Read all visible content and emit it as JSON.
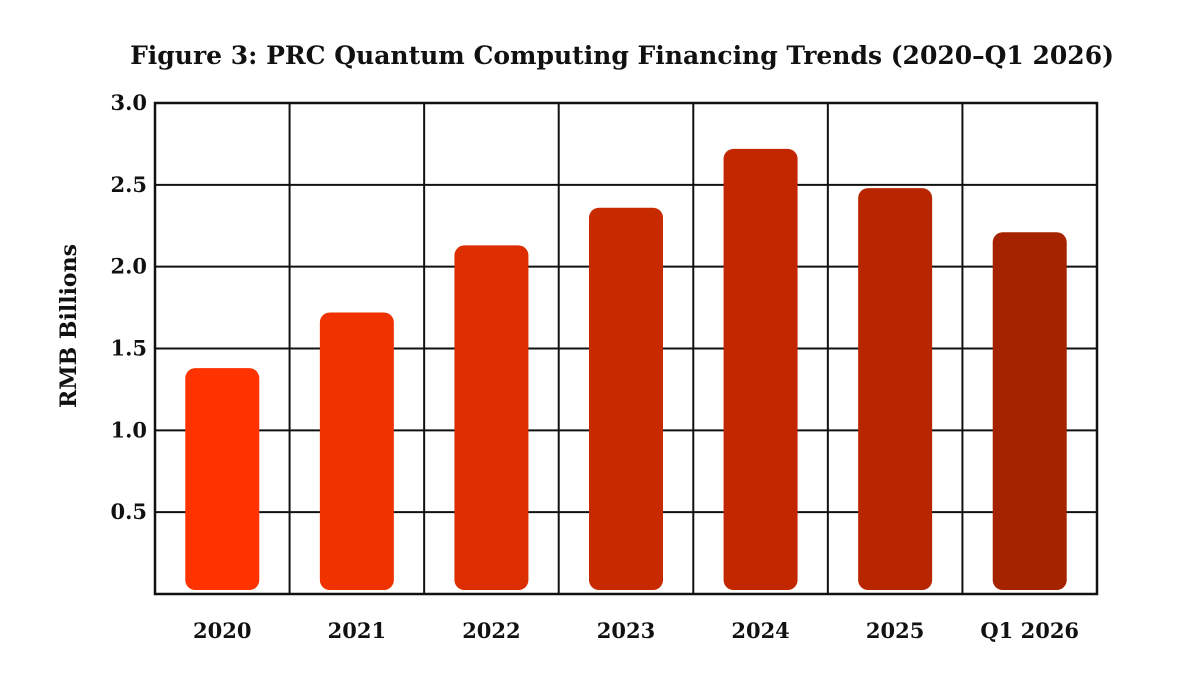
{
  "chart_data": {
    "type": "bar",
    "title": "Figure 3: PRC Quantum Computing Financing Trends (2020–Q1 2026)",
    "xlabel": "",
    "ylabel": "RMB Billions",
    "categories": [
      "2020",
      "2021",
      "2022",
      "2023",
      "2024",
      "2025",
      "Q1 2026"
    ],
    "values": [
      1.38,
      1.72,
      2.13,
      2.36,
      2.72,
      2.48,
      2.21
    ],
    "ylim": [
      0,
      3.0
    ],
    "yticks": [
      "0.5",
      "1.0",
      "1.5",
      "2.0",
      "2.5",
      "3.0"
    ],
    "grid": true,
    "colors": [
      "#fe3300",
      "#ef3200",
      "#dc2e00",
      "#c82a00",
      "#c32700",
      "#b82600",
      "#a62300"
    ]
  }
}
